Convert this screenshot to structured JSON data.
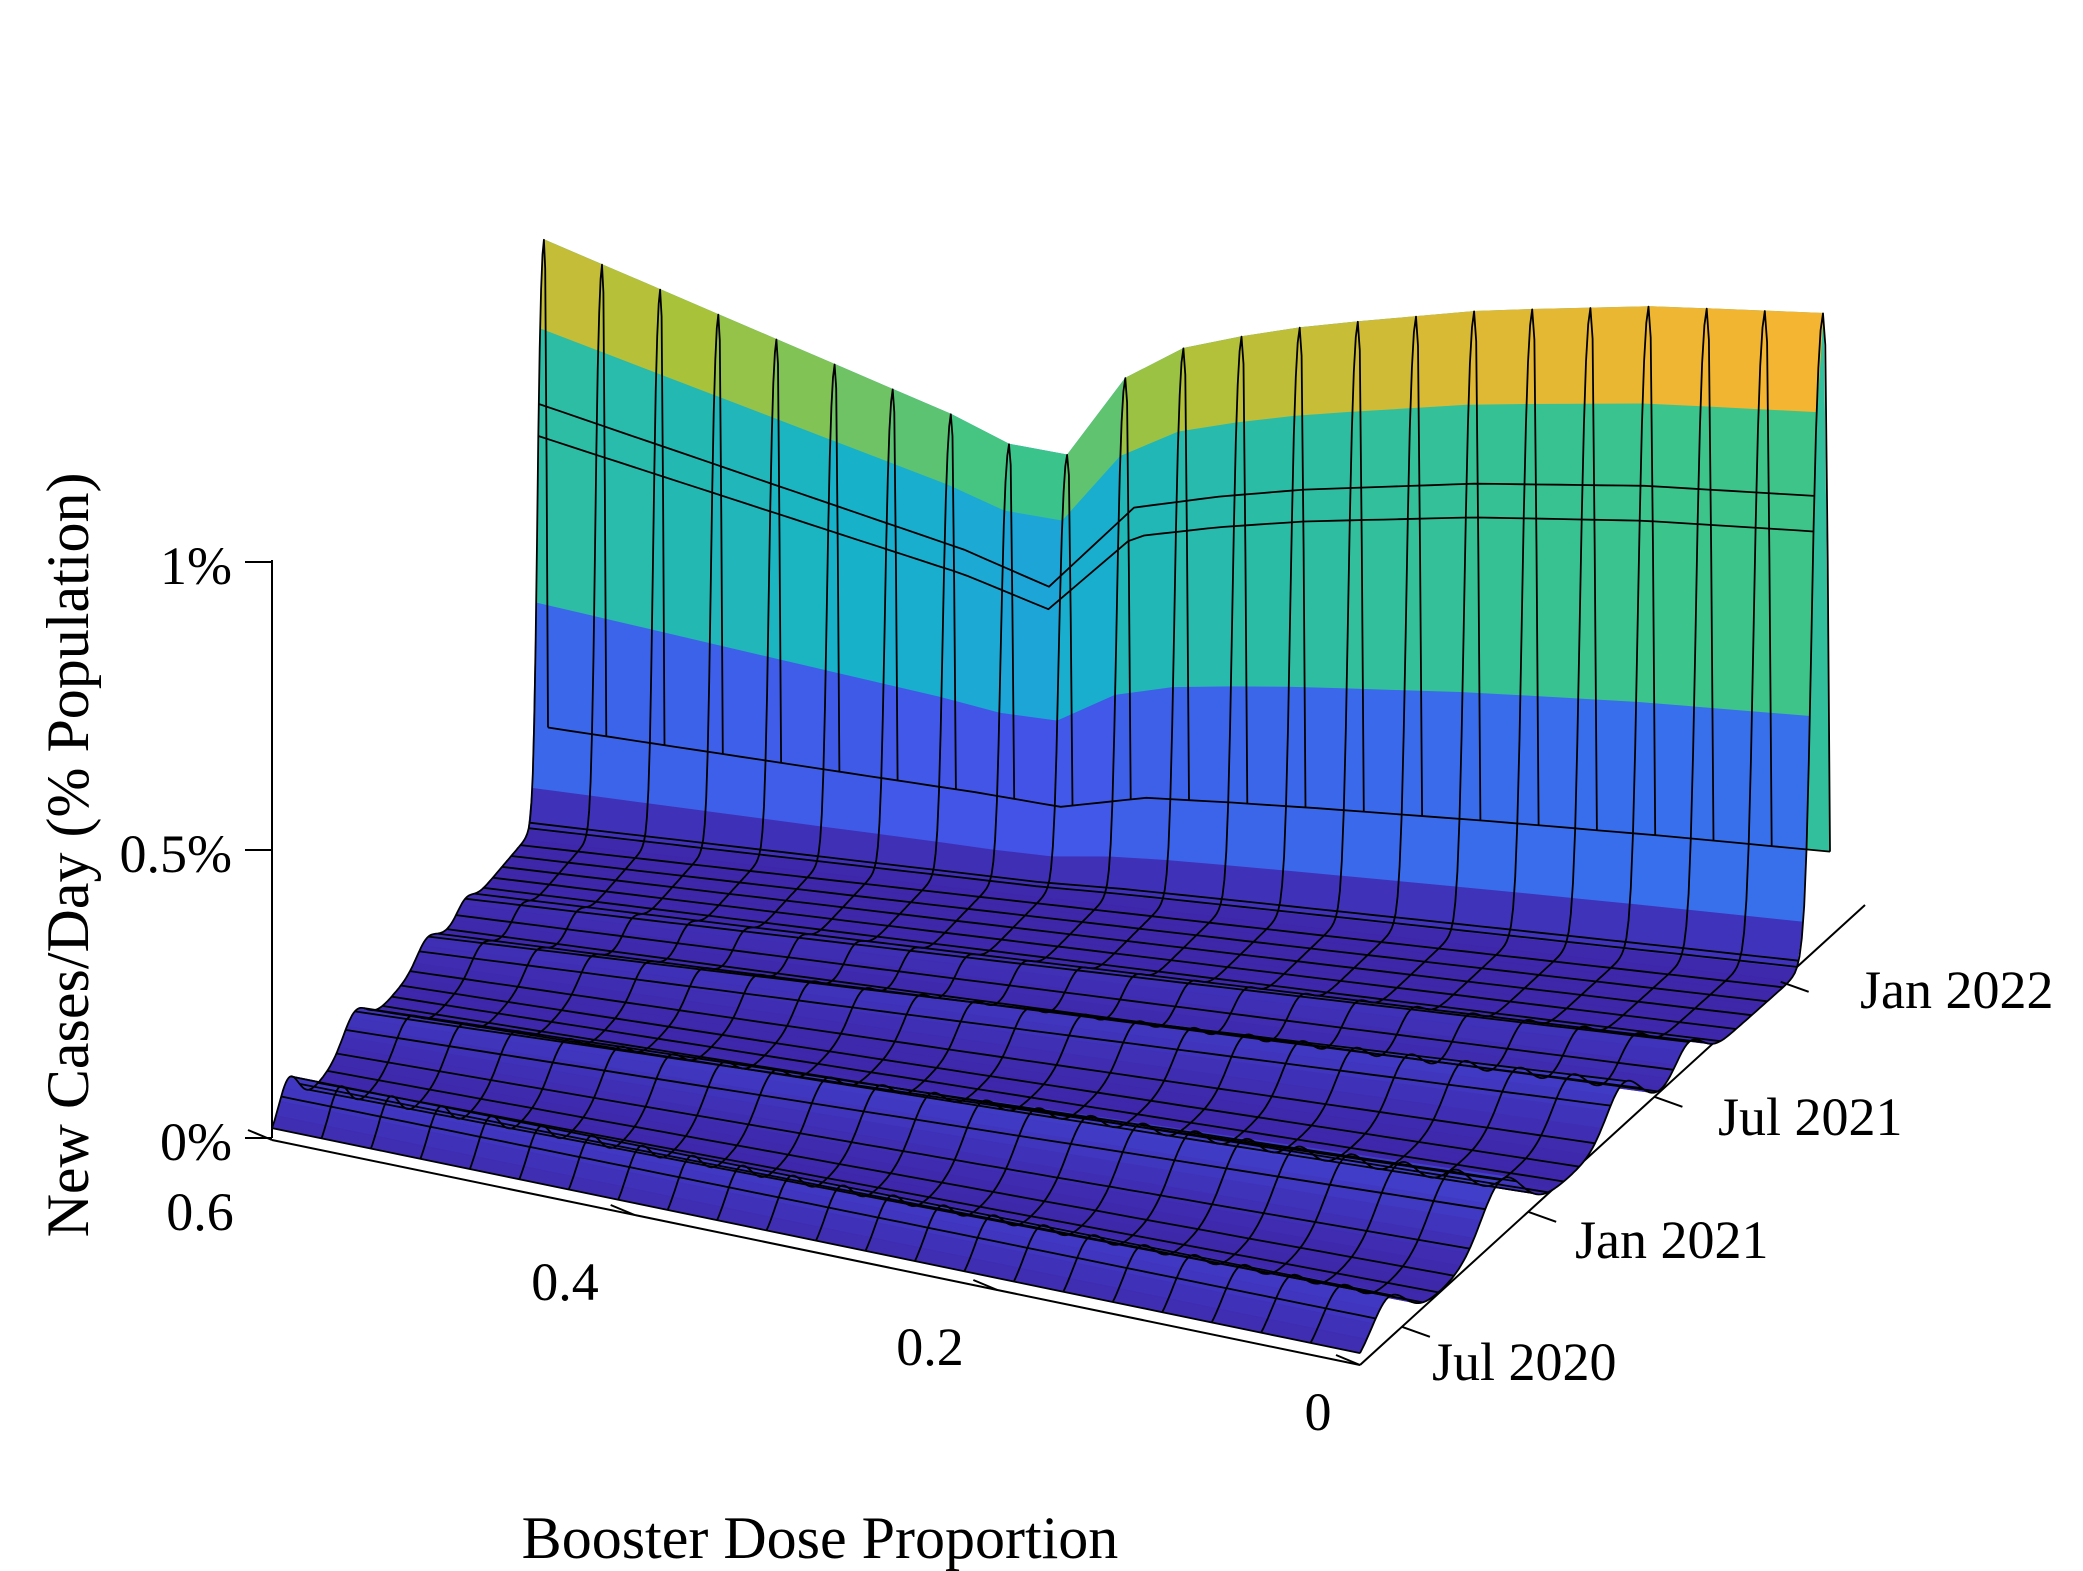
{
  "chart_data": {
    "type": "surface",
    "zlabel": "New Cases/Day (% Population)",
    "xlabel": "Booster Dose Proportion",
    "ylabel": "",
    "x_ticks": [
      {
        "value": 0.6,
        "label": "0.6"
      },
      {
        "value": 0.4,
        "label": "0.4"
      },
      {
        "value": 0.2,
        "label": "0.2"
      },
      {
        "value": 0,
        "label": "0"
      }
    ],
    "y_ticks": [
      {
        "value": 0.083,
        "label": "Jul 2020"
      },
      {
        "value": 0.333,
        "label": "Jan 2021"
      },
      {
        "value": 0.583,
        "label": "Jul 2021"
      },
      {
        "value": 0.833,
        "label": "Jan 2022"
      }
    ],
    "z_ticks": [
      {
        "value": 0,
        "label": "0%"
      },
      {
        "value": 0.5,
        "label": "0.5%"
      },
      {
        "value": 1,
        "label": "1%"
      }
    ],
    "xlim": [
      0,
      0.6
    ],
    "zlim": [
      0,
      1.25
    ],
    "colormap": "parula",
    "colormap_stops": [
      "#3e26a8",
      "#4353e7",
      "#2d8cf1",
      "#17b2c9",
      "#3cc48a",
      "#a8c23a",
      "#f4b532",
      "#f9fb15"
    ],
    "booster_proportion": [
      0.6,
      0.56,
      0.52,
      0.48,
      0.44,
      0.4,
      0.36,
      0.32,
      0.28,
      0.24,
      0.2,
      0.16,
      0.12,
      0.08,
      0.04,
      0
    ],
    "peak_cases_by_proportion": [
      0.1,
      0.1,
      0.1,
      0.1,
      0.1,
      0.1,
      0.1,
      0.1,
      0.1,
      0.1,
      0.1,
      0.1,
      0.1,
      0.1,
      0.1,
      0.1
    ],
    "series": [
      {
        "name": "",
        "description_of_profile_along_time_axis": "",
        "time_profile_at_zero_booster": [
          0.0,
          0.01,
          0.06,
          0.02,
          0.03,
          0.1,
          0.05,
          0.02,
          0.03,
          0.04,
          0.08,
          0.02,
          0.05,
          0.25,
          0.75,
          1.14,
          0.3
        ]
      }
    ],
    "late_wave_peak_by_proportion": [
      1.05,
      1.0,
      0.95,
      0.9,
      0.85,
      0.8,
      0.73,
      0.95,
      1.0,
      1.04,
      1.07,
      1.1,
      1.12,
      1.14,
      1.15,
      1.16
    ]
  }
}
